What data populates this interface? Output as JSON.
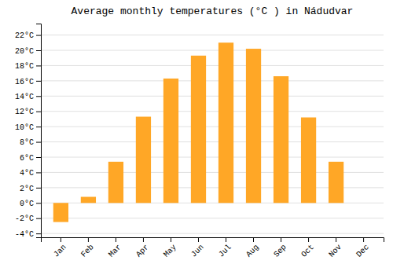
{
  "chart_data": {
    "type": "bar",
    "title": "Average monthly temperatures (°C ) in Nádudvar",
    "categories": [
      "Jan",
      "Feb",
      "Mar",
      "Apr",
      "May",
      "Jun",
      "Jul",
      "Aug",
      "Sep",
      "Oct",
      "Nov",
      "Dec"
    ],
    "values": [
      -2.5,
      0.8,
      5.4,
      11.3,
      16.3,
      19.3,
      21.0,
      20.2,
      16.6,
      11.2,
      5.4,
      0.0
    ],
    "color": "#FFA726",
    "ylim": [
      -4.5,
      23.5
    ],
    "yticks": [
      {
        "value": -4,
        "label": "-4°C"
      },
      {
        "value": -2,
        "label": "-2°C"
      },
      {
        "value": 0,
        "label": "0°C"
      },
      {
        "value": 2,
        "label": "2°C"
      },
      {
        "value": 4,
        "label": "4°C"
      },
      {
        "value": 6,
        "label": "6°C"
      },
      {
        "value": 8,
        "label": "8°C"
      },
      {
        "value": 10,
        "label": "10°C"
      },
      {
        "value": 12,
        "label": "12°C"
      },
      {
        "value": 14,
        "label": "14°C"
      },
      {
        "value": 16,
        "label": "16°C"
      },
      {
        "value": 18,
        "label": "18°C"
      },
      {
        "value": 20,
        "label": "20°C"
      },
      {
        "value": 22,
        "label": "22°C"
      }
    ],
    "grid": true
  }
}
